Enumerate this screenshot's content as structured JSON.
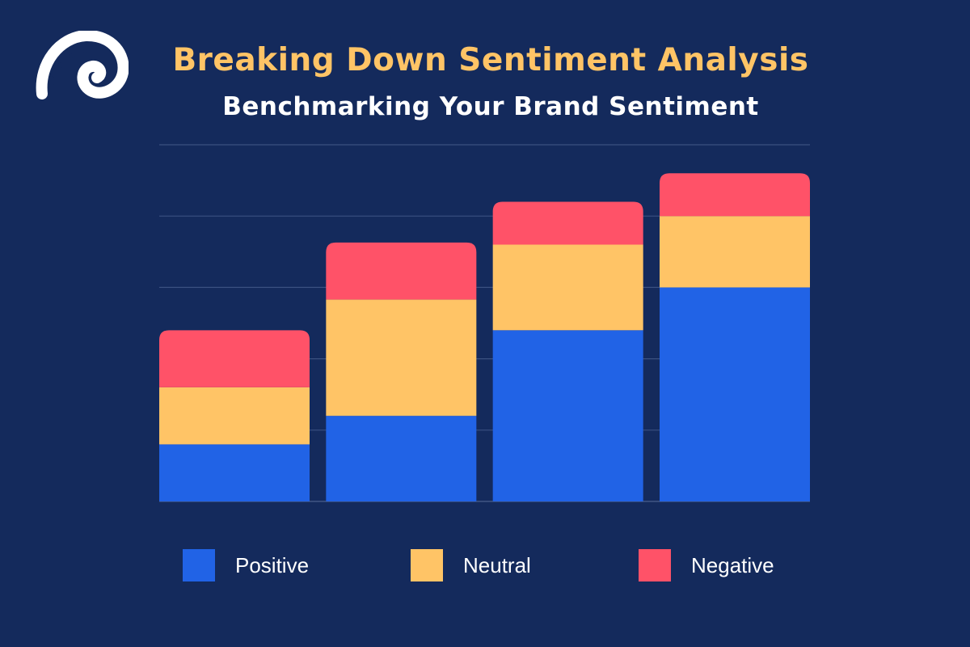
{
  "header": {
    "title": "Breaking Down Sentiment Analysis",
    "subtitle": "Benchmarking Your Brand Sentiment",
    "logo": "swirl-logo-icon"
  },
  "colors": {
    "background": "#142a5c",
    "title": "#ffc466",
    "grid": "#3a5080",
    "positive": "#2163e6",
    "neutral": "#ffc466",
    "negative": "#ff5268"
  },
  "chart_data": {
    "type": "bar",
    "stacked": true,
    "title": "Breaking Down Sentiment Analysis",
    "subtitle": "Benchmarking Your Brand Sentiment",
    "xlabel": "",
    "ylabel": "",
    "categories": [
      "",
      "",
      "",
      ""
    ],
    "ylim": [
      0,
      5
    ],
    "grid": true,
    "legend": "bottom",
    "series": [
      {
        "name": "Positive",
        "color": "#2163e6",
        "values": [
          0.8,
          1.2,
          2.4,
          3.0
        ]
      },
      {
        "name": "Neutral",
        "color": "#ffc466",
        "values": [
          0.8,
          1.63,
          1.2,
          1.0
        ]
      },
      {
        "name": "Negative",
        "color": "#ff5268",
        "values": [
          0.8,
          0.8,
          0.6,
          0.6
        ]
      }
    ]
  },
  "legend": [
    {
      "label": "Positive",
      "color": "#2163e6"
    },
    {
      "label": "Neutral",
      "color": "#ffc466"
    },
    {
      "label": "Negative",
      "color": "#ff5268"
    }
  ]
}
